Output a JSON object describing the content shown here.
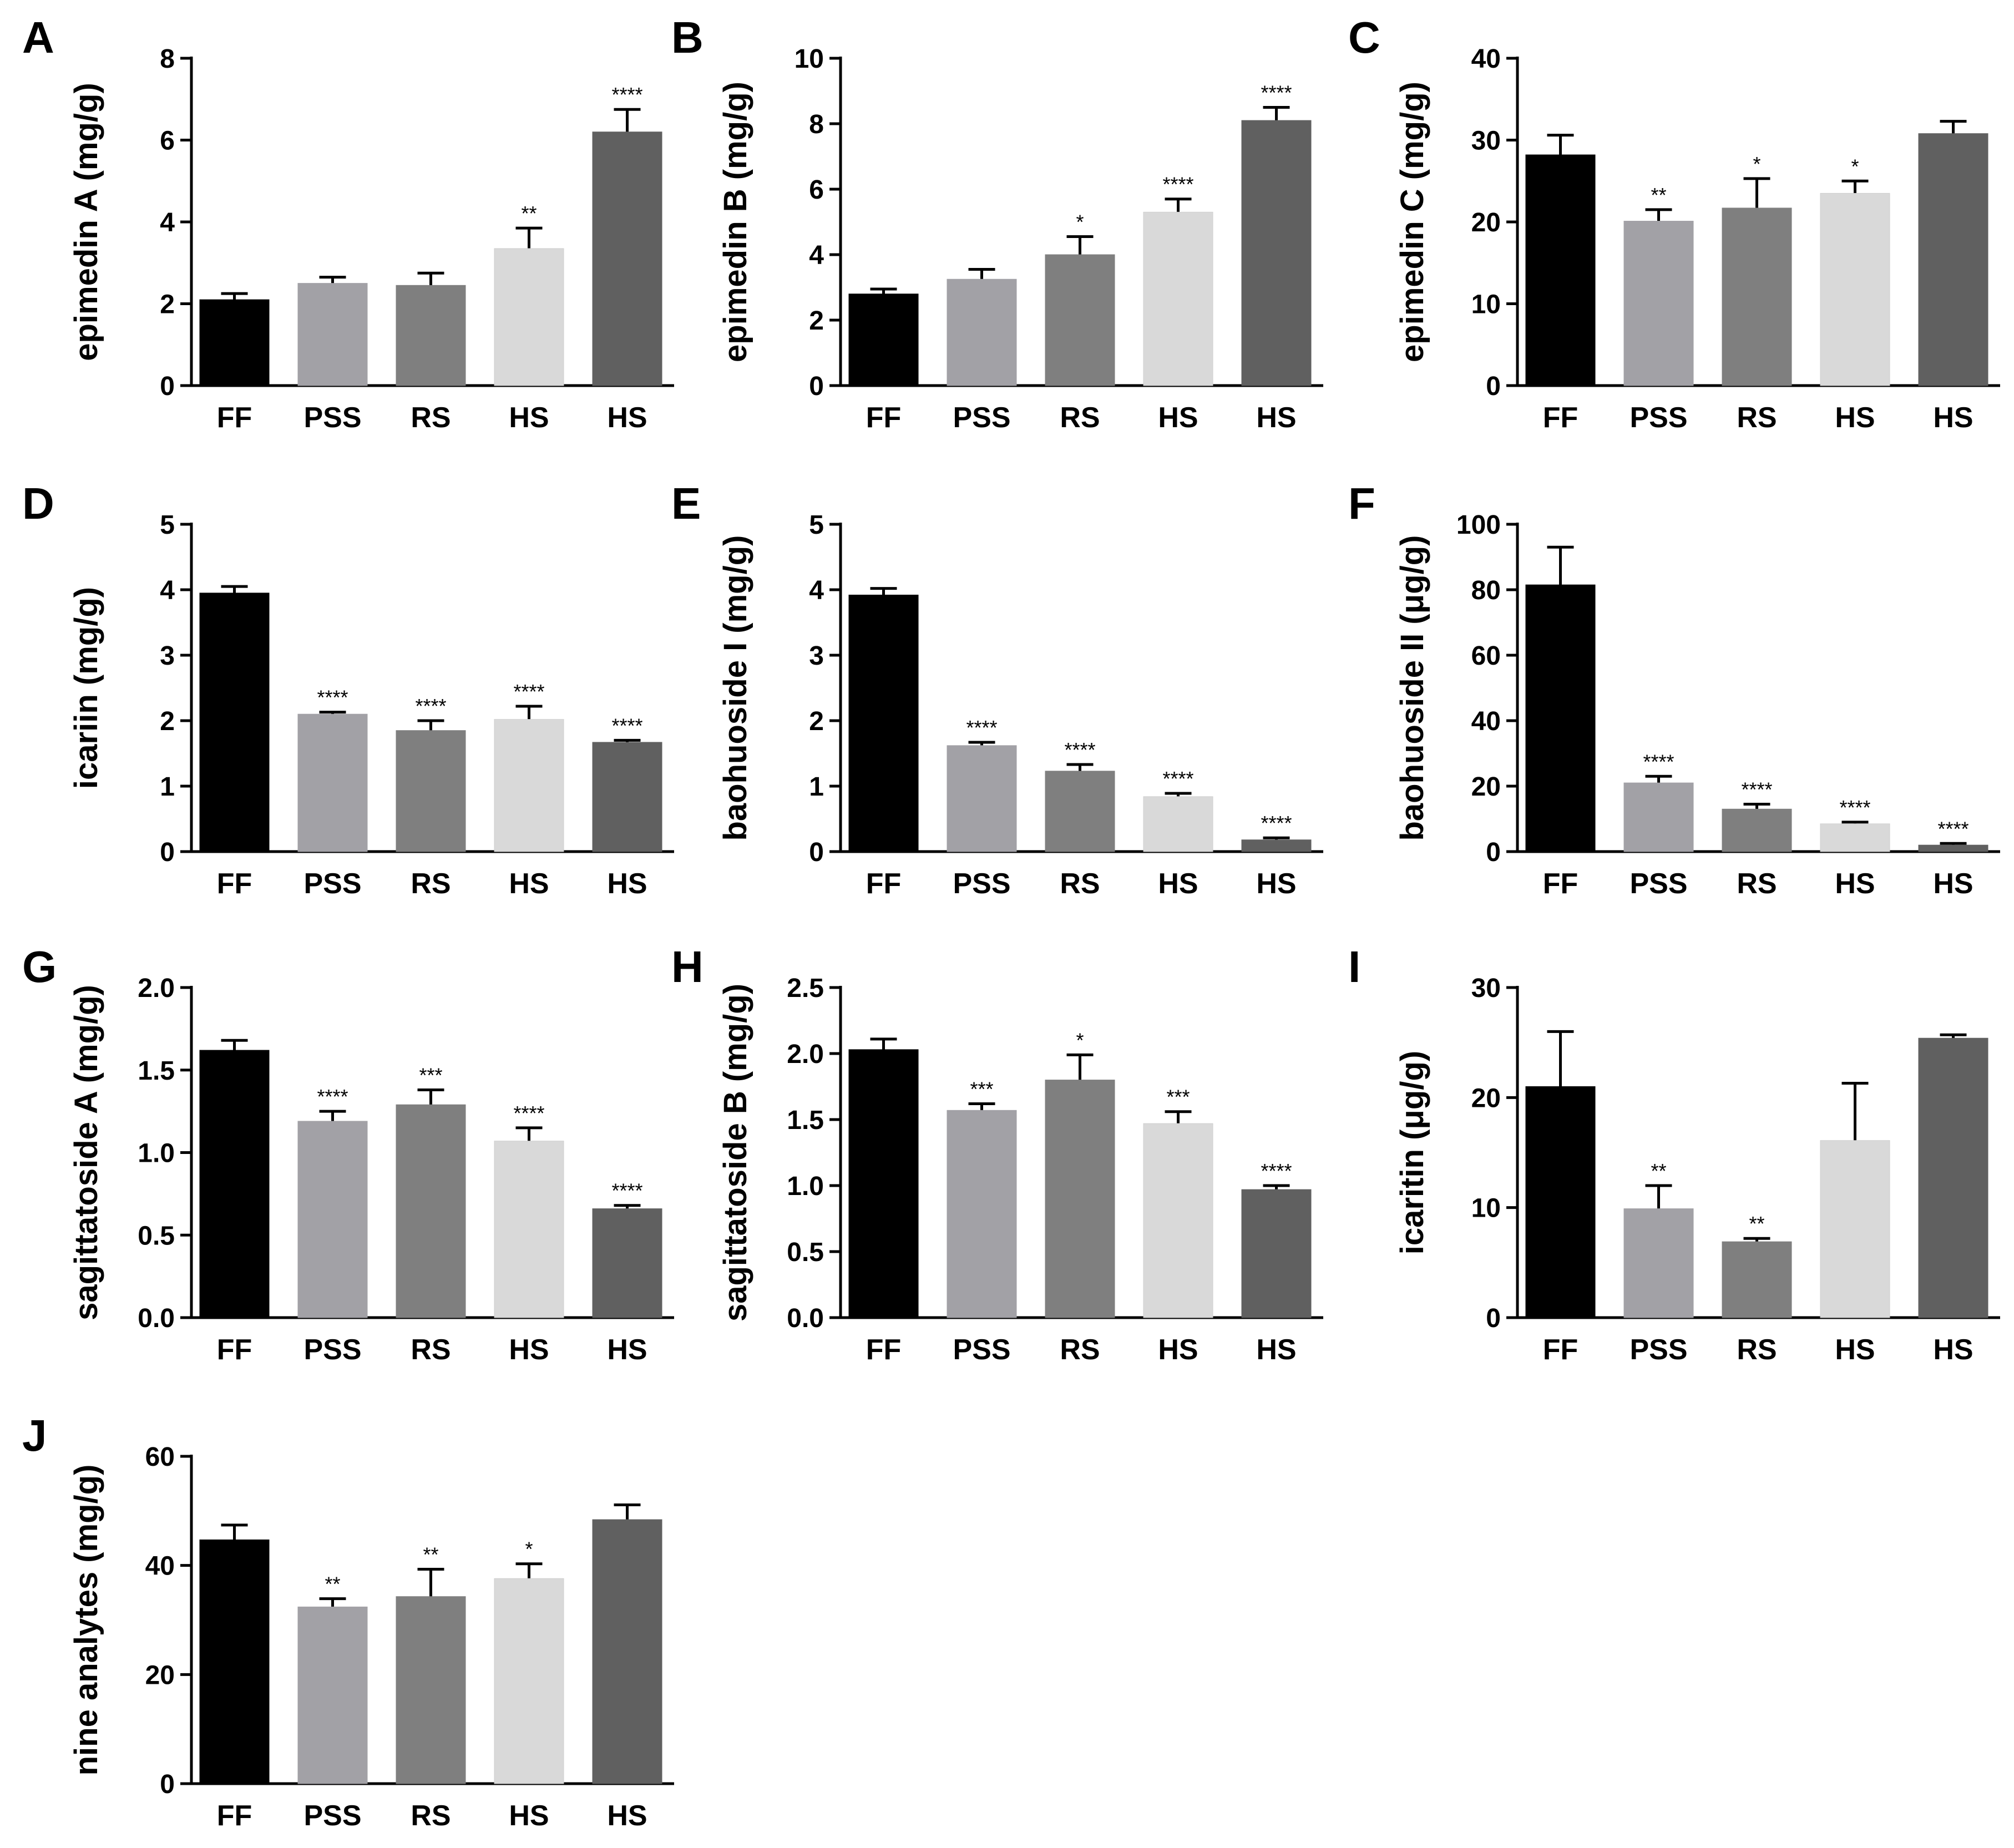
{
  "figure": {
    "colors": [
      "#000000",
      "#a2a1a6",
      "#7f7f7f",
      "#d9d9d9",
      "#606060"
    ],
    "categories": [
      "FF",
      "PSS",
      "RS",
      "HS",
      "HS"
    ]
  },
  "chart_data": [
    {
      "panel": "A",
      "type": "bar",
      "ylabel": "epimedin A (mg/g)",
      "ylim": [
        0,
        8
      ],
      "yticks": [
        "0",
        "2",
        "4",
        "6",
        "8"
      ],
      "categories": [
        "FF",
        "PSS",
        "RS",
        "HS",
        "HS"
      ],
      "values": [
        2.1,
        2.5,
        2.45,
        3.35,
        6.2
      ],
      "errors": [
        0.15,
        0.15,
        0.3,
        0.5,
        0.55
      ],
      "significance": [
        "",
        "",
        "",
        "**",
        "****"
      ]
    },
    {
      "panel": "B",
      "type": "bar",
      "ylabel": "epimedin B (mg/g)",
      "ylim": [
        0,
        10
      ],
      "yticks": [
        "0",
        "2",
        "4",
        "6",
        "8",
        "10"
      ],
      "categories": [
        "FF",
        "PSS",
        "RS",
        "HS",
        "HS"
      ],
      "values": [
        2.8,
        3.25,
        4.0,
        5.3,
        8.1
      ],
      "errors": [
        0.15,
        0.3,
        0.55,
        0.4,
        0.4
      ],
      "significance": [
        "",
        "",
        "*",
        "****",
        "****"
      ]
    },
    {
      "panel": "C",
      "type": "bar",
      "ylabel": "epimedin C (mg/g)",
      "ylim": [
        0,
        40
      ],
      "yticks": [
        "0",
        "10",
        "20",
        "30",
        "40"
      ],
      "categories": [
        "FF",
        "PSS",
        "RS",
        "HS",
        "HS"
      ],
      "values": [
        28.2,
        20.1,
        21.7,
        23.5,
        30.8
      ],
      "errors": [
        2.4,
        1.4,
        3.6,
        1.5,
        1.5
      ],
      "significance": [
        "",
        "**",
        "*",
        "*",
        ""
      ]
    },
    {
      "panel": "D",
      "type": "bar",
      "ylabel": "icariin (mg/g)",
      "ylim": [
        0,
        5
      ],
      "yticks": [
        "0",
        "1",
        "2",
        "3",
        "4",
        "5"
      ],
      "categories": [
        "FF",
        "PSS",
        "RS",
        "HS",
        "HS"
      ],
      "values": [
        3.95,
        2.1,
        1.85,
        2.02,
        1.67
      ],
      "errors": [
        0.1,
        0.03,
        0.15,
        0.2,
        0.03
      ],
      "significance": [
        "",
        "****",
        "****",
        "****",
        "****"
      ]
    },
    {
      "panel": "E",
      "type": "bar",
      "ylabel": "baohuoside I (mg/g)",
      "ylim": [
        0,
        5
      ],
      "yticks": [
        "0",
        "1",
        "2",
        "3",
        "4",
        "5"
      ],
      "categories": [
        "FF",
        "PSS",
        "RS",
        "HS",
        "HS"
      ],
      "values": [
        3.92,
        1.62,
        1.23,
        0.84,
        0.18
      ],
      "errors": [
        0.1,
        0.05,
        0.1,
        0.05,
        0.03
      ],
      "significance": [
        "",
        "****",
        "****",
        "****",
        "****"
      ]
    },
    {
      "panel": "F",
      "type": "bar",
      "ylabel": "baohuoside II (μg/g)",
      "ylim": [
        0,
        100
      ],
      "yticks": [
        "0",
        "20",
        "40",
        "60",
        "80",
        "100"
      ],
      "categories": [
        "FF",
        "PSS",
        "RS",
        "HS",
        "HS"
      ],
      "values": [
        81.5,
        21.0,
        13.0,
        8.5,
        2.0
      ],
      "errors": [
        11.5,
        2.0,
        1.5,
        0.5,
        0.5
      ],
      "significance": [
        "",
        "****",
        "****",
        "****",
        "****"
      ]
    },
    {
      "panel": "G",
      "type": "bar",
      "ylabel": "sagittatoside A (mg/g)",
      "ylim": [
        0,
        2.0
      ],
      "yticks": [
        "0.0",
        "0.5",
        "1.0",
        "1.5",
        "2.0"
      ],
      "categories": [
        "FF",
        "PSS",
        "RS",
        "HS",
        "HS"
      ],
      "values": [
        1.62,
        1.19,
        1.29,
        1.07,
        0.66
      ],
      "errors": [
        0.06,
        0.06,
        0.09,
        0.08,
        0.02
      ],
      "significance": [
        "",
        "****",
        "***",
        "****",
        "****"
      ]
    },
    {
      "panel": "H",
      "type": "bar",
      "ylabel": "sagittatoside B (mg/g)",
      "ylim": [
        0,
        2.5
      ],
      "yticks": [
        "0.0",
        "0.5",
        "1.0",
        "1.5",
        "2.0",
        "2.5"
      ],
      "categories": [
        "FF",
        "PSS",
        "RS",
        "HS",
        "HS"
      ],
      "values": [
        2.03,
        1.57,
        1.8,
        1.47,
        0.97
      ],
      "errors": [
        0.08,
        0.05,
        0.19,
        0.09,
        0.03
      ],
      "significance": [
        "",
        "***",
        "*",
        "***",
        "****"
      ]
    },
    {
      "panel": "I",
      "type": "bar",
      "ylabel": "icaritin (μg/g)",
      "ylim": [
        0,
        30
      ],
      "yticks": [
        "0",
        "10",
        "20",
        "30"
      ],
      "categories": [
        "FF",
        "PSS",
        "RS",
        "HS",
        "HS"
      ],
      "values": [
        21.0,
        9.9,
        6.9,
        16.1,
        25.4
      ],
      "errors": [
        5.0,
        2.1,
        0.3,
        5.2,
        0.3
      ],
      "significance": [
        "",
        "**",
        "**",
        "",
        ""
      ]
    },
    {
      "panel": "J",
      "type": "bar",
      "ylabel": "nine analytes (mg/g)",
      "ylim": [
        0,
        60
      ],
      "yticks": [
        "0",
        "20",
        "40",
        "60"
      ],
      "categories": [
        "FF",
        "PSS",
        "RS",
        "HS",
        "HS"
      ],
      "values": [
        44.7,
        32.4,
        34.3,
        37.6,
        48.4
      ],
      "errors": [
        2.7,
        1.5,
        5.0,
        2.7,
        2.7
      ],
      "significance": [
        "",
        "**",
        "**",
        "*",
        ""
      ]
    }
  ]
}
